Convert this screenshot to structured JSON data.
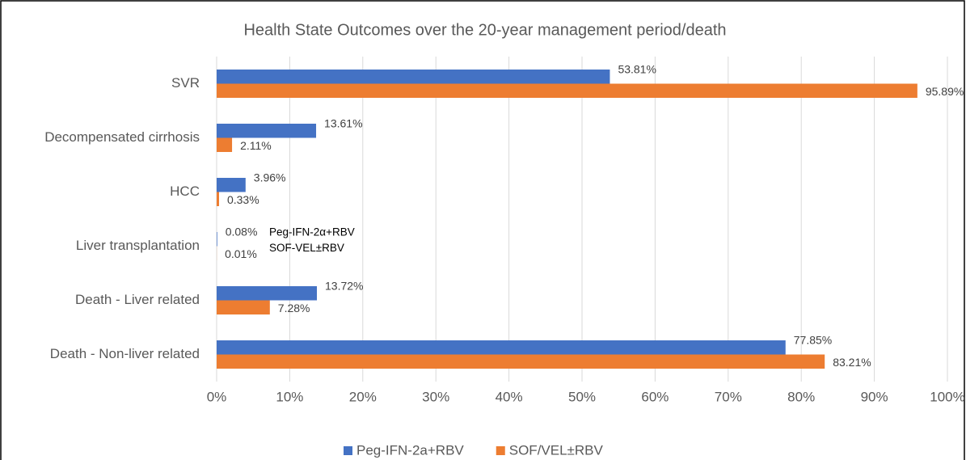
{
  "chart_data": {
    "type": "hbar",
    "title": "Health State Outcomes over the 20-year management period/death",
    "categories": [
      "SVR",
      "Decompensated cirrhosis",
      "HCC",
      "Liver transplantation",
      "Death - Liver related",
      "Death - Non-liver related"
    ],
    "series": [
      {
        "name": "Peg-IFN-2a+RBV",
        "color": "#4472c4",
        "values": [
          53.81,
          13.61,
          3.96,
          0.08,
          13.72,
          77.85
        ],
        "value_labels": [
          "53.81%",
          "13.61%",
          "3.96%",
          "0.08%",
          "13.72%",
          "77.85%"
        ]
      },
      {
        "name": "SOF/VEL±RBV",
        "color": "#ed7d31",
        "values": [
          95.89,
          2.11,
          0.33,
          0.01,
          7.28,
          83.21
        ],
        "value_labels": [
          "95.89%",
          "2.11%",
          "0.33%",
          "0.01%",
          "7.28%",
          "83.21%"
        ]
      }
    ],
    "annotations": [
      "Peg-IFN-2α+RBV",
      "SOF-VEL±RBV"
    ],
    "xlim": [
      0,
      100
    ],
    "xticks": [
      {
        "value": 0,
        "label": "0%"
      },
      {
        "value": 10,
        "label": "10%"
      },
      {
        "value": 20,
        "label": "20%"
      },
      {
        "value": 30,
        "label": "30%"
      },
      {
        "value": 40,
        "label": "40%"
      },
      {
        "value": 50,
        "label": "50%"
      },
      {
        "value": 60,
        "label": "60%"
      },
      {
        "value": 70,
        "label": "70%"
      },
      {
        "value": 80,
        "label": "80%"
      },
      {
        "value": 90,
        "label": "90%"
      },
      {
        "value": 100,
        "label": "100%"
      }
    ],
    "grid": true,
    "legend": "bottom"
  }
}
